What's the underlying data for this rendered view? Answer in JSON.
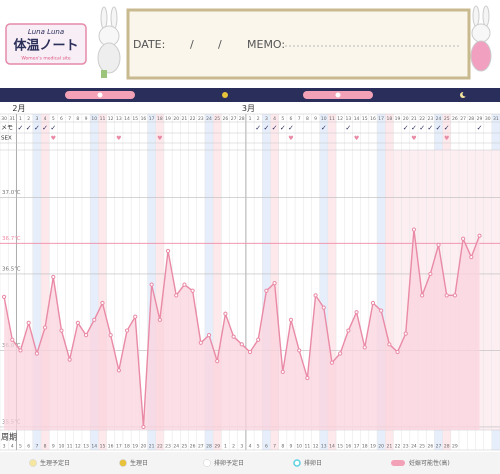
{
  "header": {
    "logo_top": "Luna Luna",
    "logo_title": "体温ノート",
    "logo_sub": "Women's medical site",
    "date_label": "DATE:",
    "slash1": "/",
    "slash2": "/",
    "memo_label": "MEMO:"
  },
  "chart_data": {
    "type": "line",
    "months": [
      "2月",
      "3月"
    ],
    "dates": [
      30,
      31,
      1,
      2,
      3,
      4,
      5,
      6,
      7,
      8,
      9,
      10,
      11,
      12,
      13,
      14,
      15,
      16,
      17,
      18,
      19,
      20,
      21,
      22,
      23,
      24,
      25,
      26,
      27,
      28,
      1,
      2,
      3,
      4,
      5,
      6,
      7,
      8,
      9,
      10,
      11,
      12,
      13,
      14,
      15,
      16,
      17,
      18,
      19,
      20,
      21,
      22,
      23,
      24,
      25,
      26,
      27,
      28,
      29,
      30,
      31
    ],
    "row_labels": {
      "memo": "メモ",
      "sex": "SEX",
      "cycle": "周期"
    },
    "memo": [
      null,
      null,
      "✓",
      "✓",
      "✓",
      "✓",
      "✓",
      null,
      null,
      null,
      null,
      null,
      null,
      null,
      null,
      null,
      null,
      null,
      null,
      null,
      null,
      null,
      null,
      null,
      null,
      null,
      null,
      null,
      null,
      null,
      null,
      "✓",
      "✓",
      "✓",
      "✓",
      "✓",
      null,
      null,
      null,
      "✓",
      null,
      null,
      "✓",
      null,
      null,
      null,
      null,
      null,
      null,
      "✓",
      "✓",
      "✓",
      "✓",
      "✓",
      "✓",
      null,
      null,
      null,
      "✓",
      null,
      null
    ],
    "sex": [
      null,
      null,
      null,
      null,
      null,
      null,
      "♥",
      null,
      null,
      null,
      null,
      null,
      null,
      null,
      "♥",
      null,
      null,
      null,
      null,
      "♥",
      null,
      null,
      null,
      null,
      null,
      null,
      null,
      null,
      null,
      null,
      null,
      null,
      null,
      null,
      null,
      "♥",
      null,
      null,
      null,
      null,
      null,
      null,
      null,
      "♥",
      null,
      null,
      null,
      null,
      null,
      null,
      "♥",
      null,
      null,
      null,
      "♥",
      null,
      null,
      null,
      null,
      null,
      null
    ],
    "cycle": [
      3,
      4,
      5,
      6,
      7,
      8,
      9,
      10,
      11,
      12,
      13,
      14,
      15,
      16,
      17,
      18,
      19,
      20,
      21,
      22,
      23,
      24,
      25,
      26,
      27,
      28,
      29,
      1,
      2,
      3,
      4,
      5,
      6,
      7,
      8,
      9,
      10,
      11,
      12,
      13,
      14,
      15,
      16,
      17,
      18,
      19,
      20,
      21,
      22,
      23,
      24,
      25,
      26,
      27,
      28,
      29,
      null,
      null,
      null,
      null,
      null
    ],
    "series": [
      {
        "color": "#e98aa6",
        "values": [
          36.35,
          36.07,
          36.0,
          36.18,
          35.98,
          36.15,
          36.48,
          36.13,
          35.94,
          36.18,
          36.1,
          36.2,
          36.31,
          36.1,
          35.87,
          36.13,
          36.22,
          35.5,
          36.43,
          36.2,
          36.65,
          36.36,
          36.43,
          36.39,
          36.05,
          36.1,
          35.93,
          36.24,
          36.09,
          36.04,
          35.99,
          36.07,
          36.39,
          36.44,
          35.86,
          36.2,
          36.0,
          35.82,
          36.36,
          36.28,
          35.92,
          35.98,
          36.13,
          36.25,
          36.02,
          36.31,
          36.26,
          36.04,
          35.99,
          36.11,
          36.79,
          36.36,
          36.5,
          36.69,
          36.36,
          36.36,
          36.73,
          36.61,
          36.75,
          null,
          null
        ]
      }
    ],
    "ylim": [
      35.48,
      37.31
    ],
    "yticks": [
      {
        "value": 35.5,
        "label": "35.5℃"
      },
      {
        "value": 36.0,
        "label": "36.0℃"
      },
      {
        "value": 36.5,
        "label": "36.5℃"
      },
      {
        "value": 37.0,
        "label": "37.0℃"
      }
    ],
    "reference_line": {
      "value": 36.7,
      "label": "36.7℃",
      "color": "#f08aa6"
    },
    "grid": true,
    "legend": [
      {
        "label": "生理予定日",
        "color": "#f6e7a0"
      },
      {
        "label": "生理日",
        "color": "#e8c23a"
      },
      {
        "label": "排卵予定日",
        "color": "#ffffff"
      },
      {
        "label": "排卵日",
        "color": "#5fd0e0"
      },
      {
        "label": "妊娠可能性(高)",
        "color": "#f3a1b6"
      }
    ]
  }
}
